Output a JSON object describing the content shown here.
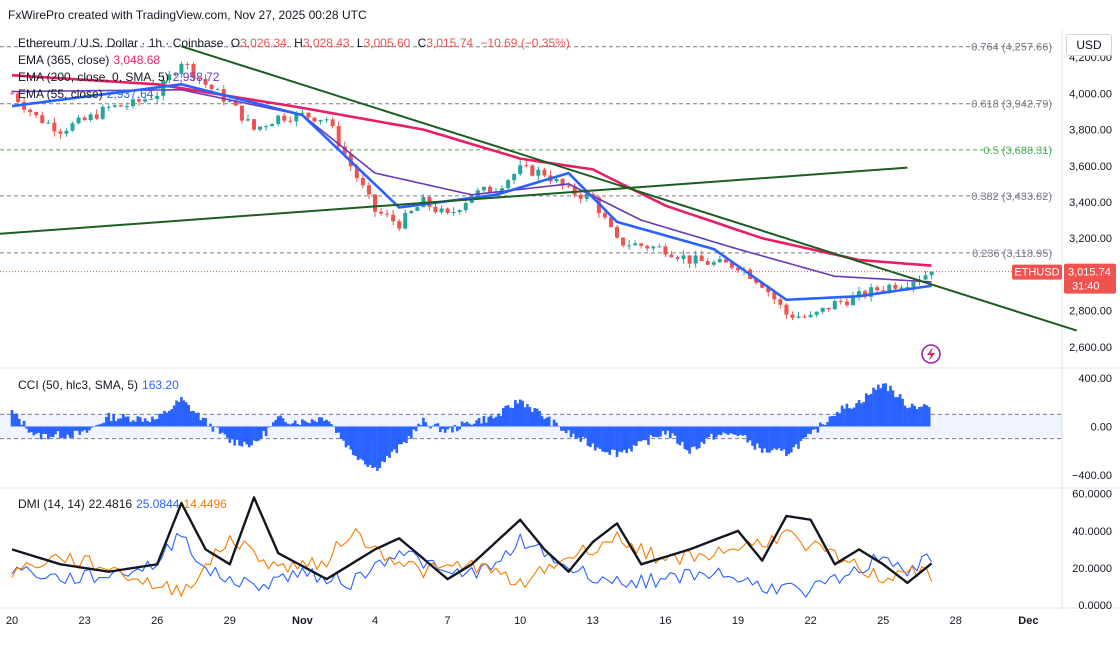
{
  "header": {
    "credit": "FxWirePro created with TradingView.com, Nov 27, 2025 00:28 UTC",
    "symbol_line": "Ethereum / U.S. Dollar · 1h · Coinbase",
    "o_label": "O",
    "o_value": "3,026.34",
    "h_label": "H",
    "h_value": "3,028.43",
    "l_label": "L",
    "l_value": "3,005.60",
    "c_label": "C",
    "c_value": "3,015.74",
    "change": "−10.69 (−0.35%)",
    "currency": "USD"
  },
  "indicators": {
    "ema365_label": "EMA (365, close)",
    "ema365_value": "3,048.68",
    "ema200_label": "EMA (200, close, 0, SMA, 5)",
    "ema200_value": "2,958.72",
    "ema55_label": "EMA (55, close)",
    "ema55_value": "2,937.64",
    "cci_label": "CCI (50, hlc3, SMA, 5)",
    "cci_value": "163.20",
    "dmi_label": "DMI (14, 14)",
    "dmi_adx": "22.4816",
    "dmi_plus": "25.0844",
    "dmi_minus": "14.4496"
  },
  "colors": {
    "up": "#26a69a",
    "down": "#ef5350",
    "ema365": "#e91e63",
    "ema200": "#673ab7",
    "ema55": "#2962ff",
    "trend": "#1b5e20",
    "fib_dash": "#787b86",
    "fib05": "#4caf50",
    "cci": "#2962ff",
    "adx": "#131722",
    "di_plus": "#2962ff",
    "di_minus": "#f57c00",
    "last_price": "#ef5350"
  },
  "chart_data": [
    {
      "type": "candlestick",
      "title": "Ethereum / U.S. Dollar · 1h · Coinbase",
      "ylim": [
        2500,
        4350
      ],
      "y_ticks": [
        "4,200.00",
        "4,000.00",
        "3,800.00",
        "3,600.00",
        "3,400.00",
        "3,200.00",
        "3,000.00",
        "2,800.00",
        "2,600.00"
      ],
      "x_ticks": [
        "20",
        "23",
        "26",
        "29",
        "Nov",
        "4",
        "7",
        "10",
        "13",
        "16",
        "19",
        "22",
        "25",
        "28",
        "Dec"
      ],
      "price_keypoints": [
        {
          "x": "Oct 20",
          "y": 4000
        },
        {
          "x": "Oct 21",
          "y": 3870
        },
        {
          "x": "Oct 22",
          "y": 3800
        },
        {
          "x": "Oct 23",
          "y": 3850
        },
        {
          "x": "Oct 24",
          "y": 3920
        },
        {
          "x": "Oct 25",
          "y": 3940
        },
        {
          "x": "Oct 26",
          "y": 4000
        },
        {
          "x": "Oct 27",
          "y": 4180
        },
        {
          "x": "Oct 28",
          "y": 4050
        },
        {
          "x": "Oct 29",
          "y": 3950
        },
        {
          "x": "Oct 30",
          "y": 3800
        },
        {
          "x": "Oct 31",
          "y": 3870
        },
        {
          "x": "Nov 1",
          "y": 3880
        },
        {
          "x": "Nov 2",
          "y": 3860
        },
        {
          "x": "Nov 3",
          "y": 3600
        },
        {
          "x": "Nov 4",
          "y": 3350
        },
        {
          "x": "Nov 5",
          "y": 3280
        },
        {
          "x": "Nov 6",
          "y": 3400
        },
        {
          "x": "Nov 7",
          "y": 3320
        },
        {
          "x": "Nov 8",
          "y": 3440
        },
        {
          "x": "Nov 9",
          "y": 3480
        },
        {
          "x": "Nov 10",
          "y": 3580
        },
        {
          "x": "Nov 11",
          "y": 3560
        },
        {
          "x": "Nov 12",
          "y": 3460
        },
        {
          "x": "Nov 13",
          "y": 3420
        },
        {
          "x": "Nov 14",
          "y": 3180
        },
        {
          "x": "Nov 15",
          "y": 3160
        },
        {
          "x": "Nov 16",
          "y": 3140
        },
        {
          "x": "Nov 17",
          "y": 3080
        },
        {
          "x": "Nov 18",
          "y": 3060
        },
        {
          "x": "Nov 19",
          "y": 3050
        },
        {
          "x": "Nov 20",
          "y": 2950
        },
        {
          "x": "Nov 21",
          "y": 2780
        },
        {
          "x": "Nov 22",
          "y": 2760
        },
        {
          "x": "Nov 23",
          "y": 2840
        },
        {
          "x": "Nov 24",
          "y": 2880
        },
        {
          "x": "Nov 25",
          "y": 2930
        },
        {
          "x": "Nov 26",
          "y": 2960
        },
        {
          "x": "Nov 27",
          "y": 3015.74
        }
      ],
      "ema365_keypoints": [
        {
          "x": "Oct 20",
          "y": 4100
        },
        {
          "x": "Oct 26",
          "y": 4050
        },
        {
          "x": "Nov 1",
          "y": 3920
        },
        {
          "x": "Nov 6",
          "y": 3800
        },
        {
          "x": "Nov 10",
          "y": 3640
        },
        {
          "x": "Nov 13",
          "y": 3580
        },
        {
          "x": "Nov 16",
          "y": 3380
        },
        {
          "x": "Nov 20",
          "y": 3200
        },
        {
          "x": "Nov 24",
          "y": 3080
        },
        {
          "x": "Nov 27",
          "y": 3048.68
        }
      ],
      "ema200_keypoints": [
        {
          "x": "Oct 20",
          "y": 4010
        },
        {
          "x": "Oct 27",
          "y": 4020
        },
        {
          "x": "Nov 1",
          "y": 3880
        },
        {
          "x": "Nov 4",
          "y": 3560
        },
        {
          "x": "Nov 8",
          "y": 3440
        },
        {
          "x": "Nov 12",
          "y": 3500
        },
        {
          "x": "Nov 15",
          "y": 3300
        },
        {
          "x": "Nov 19",
          "y": 3140
        },
        {
          "x": "Nov 23",
          "y": 2990
        },
        {
          "x": "Nov 27",
          "y": 2958.72
        }
      ],
      "ema55_keypoints": [
        {
          "x": "Oct 20",
          "y": 3930
        },
        {
          "x": "Oct 27",
          "y": 4050
        },
        {
          "x": "Nov 1",
          "y": 3880
        },
        {
          "x": "Nov 5",
          "y": 3370
        },
        {
          "x": "Nov 9",
          "y": 3440
        },
        {
          "x": "Nov 12",
          "y": 3560
        },
        {
          "x": "Nov 14",
          "y": 3290
        },
        {
          "x": "Nov 18",
          "y": 3140
        },
        {
          "x": "Nov 21",
          "y": 2860
        },
        {
          "x": "Nov 24",
          "y": 2880
        },
        {
          "x": "Nov 27",
          "y": 2937.64
        }
      ],
      "trendlines": [
        {
          "name": "descending",
          "points": [
            {
              "x": "Oct 27",
              "y": 4260
            },
            {
              "x": "Dec 3",
              "y": 2690
            }
          ]
        },
        {
          "name": "ascending",
          "points": [
            {
              "x": "Oct 19",
              "y": 3220
            },
            {
              "x": "Nov 26",
              "y": 3590
            }
          ]
        }
      ],
      "fib_levels": [
        {
          "ratio": "0.764",
          "value": 4257.66,
          "label": "0.764 (4,257.66)"
        },
        {
          "ratio": "0.618",
          "value": 3942.79,
          "label": "0.618 (3,942.79)"
        },
        {
          "ratio": "0.5",
          "value": 3688.31,
          "label": "0.5 (3,688.31)"
        },
        {
          "ratio": "0.382",
          "value": 3433.82,
          "label": "0.382 (3,433.82)"
        },
        {
          "ratio": "0.236",
          "value": 3118.95,
          "label": "0.236 (3,118.95)"
        }
      ],
      "last_price": {
        "value": 3015.74,
        "label": "3,015.74",
        "symbol": "ETHUSD",
        "countdown": "31:40"
      }
    },
    {
      "type": "bar",
      "title": "CCI (50, hlc3, SMA, 5)",
      "ylim": [
        -400,
        400
      ],
      "y_ticks": [
        "400.00",
        "0.00",
        "−400.00"
      ],
      "bands": [
        100,
        -100
      ],
      "keypoints": [
        {
          "x": "Oct 20",
          "y": 120
        },
        {
          "x": "Oct 21",
          "y": -80
        },
        {
          "x": "Oct 23",
          "y": -60
        },
        {
          "x": "Oct 24",
          "y": 80
        },
        {
          "x": "Oct 26",
          "y": 60
        },
        {
          "x": "Oct 27",
          "y": 220
        },
        {
          "x": "Oct 28",
          "y": 40
        },
        {
          "x": "Oct 29",
          "y": -120
        },
        {
          "x": "Oct 30",
          "y": -150
        },
        {
          "x": "Oct 31",
          "y": 60
        },
        {
          "x": "Nov 1",
          "y": 40
        },
        {
          "x": "Nov 2",
          "y": 80
        },
        {
          "x": "Nov 3",
          "y": -200
        },
        {
          "x": "Nov 4",
          "y": -350
        },
        {
          "x": "Nov 5",
          "y": -180
        },
        {
          "x": "Nov 6",
          "y": 40
        },
        {
          "x": "Nov 7",
          "y": -40
        },
        {
          "x": "Nov 8",
          "y": 40
        },
        {
          "x": "Nov 9",
          "y": 80
        },
        {
          "x": "Nov 10",
          "y": 220
        },
        {
          "x": "Nov 11",
          "y": 80
        },
        {
          "x": "Nov 12",
          "y": -60
        },
        {
          "x": "Nov 13",
          "y": -160
        },
        {
          "x": "Nov 14",
          "y": -220
        },
        {
          "x": "Nov 15",
          "y": -150
        },
        {
          "x": "Nov 16",
          "y": -40
        },
        {
          "x": "Nov 17",
          "y": -200
        },
        {
          "x": "Nov 18",
          "y": -80
        },
        {
          "x": "Nov 19",
          "y": -60
        },
        {
          "x": "Nov 20",
          "y": -200
        },
        {
          "x": "Nov 21",
          "y": -220
        },
        {
          "x": "Nov 22",
          "y": -80
        },
        {
          "x": "Nov 23",
          "y": 120
        },
        {
          "x": "Nov 24",
          "y": 200
        },
        {
          "x": "Nov 25",
          "y": 360
        },
        {
          "x": "Nov 26",
          "y": 180
        },
        {
          "x": "Nov 27",
          "y": 163.2
        }
      ]
    },
    {
      "type": "line",
      "title": "DMI (14, 14)",
      "ylim": [
        0,
        60
      ],
      "y_ticks": [
        "60.0000",
        "40.0000",
        "20.0000",
        "0.0000"
      ],
      "series": [
        {
          "name": "ADX",
          "values": [
            {
              "x": "Oct 20",
              "y": 30
            },
            {
              "x": "Oct 22",
              "y": 22
            },
            {
              "x": "Oct 24",
              "y": 18
            },
            {
              "x": "Oct 26",
              "y": 22
            },
            {
              "x": "Oct 27",
              "y": 55
            },
            {
              "x": "Oct 28",
              "y": 30
            },
            {
              "x": "Oct 29",
              "y": 22
            },
            {
              "x": "Oct 30",
              "y": 58
            },
            {
              "x": "Oct 31",
              "y": 28
            },
            {
              "x": "Nov 2",
              "y": 14
            },
            {
              "x": "Nov 4",
              "y": 30
            },
            {
              "x": "Nov 5",
              "y": 36
            },
            {
              "x": "Nov 7",
              "y": 14
            },
            {
              "x": "Nov 8",
              "y": 22
            },
            {
              "x": "Nov 10",
              "y": 46
            },
            {
              "x": "Nov 11",
              "y": 30
            },
            {
              "x": "Nov 12",
              "y": 18
            },
            {
              "x": "Nov 13",
              "y": 34
            },
            {
              "x": "Nov 14",
              "y": 44
            },
            {
              "x": "Nov 15",
              "y": 22
            },
            {
              "x": "Nov 17",
              "y": 30
            },
            {
              "x": "Nov 19",
              "y": 40
            },
            {
              "x": "Nov 20",
              "y": 24
            },
            {
              "x": "Nov 21",
              "y": 48
            },
            {
              "x": "Nov 22",
              "y": 46
            },
            {
              "x": "Nov 23",
              "y": 22
            },
            {
              "x": "Nov 24",
              "y": 30
            },
            {
              "x": "Nov 25",
              "y": 22
            },
            {
              "x": "Nov 26",
              "y": 12
            },
            {
              "x": "Nov 27",
              "y": 22.4816
            }
          ]
        },
        {
          "name": "+DI",
          "values": [
            {
              "x": "Oct 20",
              "y": 20
            },
            {
              "x": "Oct 22",
              "y": 14
            },
            {
              "x": "Oct 24",
              "y": 16
            },
            {
              "x": "Oct 26",
              "y": 22
            },
            {
              "x": "Oct 27",
              "y": 40
            },
            {
              "x": "Oct 28",
              "y": 18
            },
            {
              "x": "Oct 30",
              "y": 10
            },
            {
              "x": "Nov 1",
              "y": 18
            },
            {
              "x": "Nov 3",
              "y": 12
            },
            {
              "x": "Nov 5",
              "y": 30
            },
            {
              "x": "Nov 7",
              "y": 16
            },
            {
              "x": "Nov 9",
              "y": 20
            },
            {
              "x": "Nov 10",
              "y": 36
            },
            {
              "x": "Nov 12",
              "y": 20
            },
            {
              "x": "Nov 14",
              "y": 12
            },
            {
              "x": "Nov 16",
              "y": 14
            },
            {
              "x": "Nov 18",
              "y": 18
            },
            {
              "x": "Nov 20",
              "y": 10
            },
            {
              "x": "Nov 22",
              "y": 8
            },
            {
              "x": "Nov 24",
              "y": 18
            },
            {
              "x": "Nov 25",
              "y": 28
            },
            {
              "x": "Nov 26",
              "y": 18
            },
            {
              "x": "Nov 27",
              "y": 25.0844
            }
          ]
        },
        {
          "name": "−DI",
          "values": [
            {
              "x": "Oct 20",
              "y": 18
            },
            {
              "x": "Oct 22",
              "y": 26
            },
            {
              "x": "Oct 24",
              "y": 20
            },
            {
              "x": "Oct 26",
              "y": 10
            },
            {
              "x": "Oct 27",
              "y": 8
            },
            {
              "x": "Oct 28",
              "y": 20
            },
            {
              "x": "Oct 29",
              "y": 36
            },
            {
              "x": "Oct 31",
              "y": 20
            },
            {
              "x": "Nov 2",
              "y": 24
            },
            {
              "x": "Nov 3",
              "y": 40
            },
            {
              "x": "Nov 4",
              "y": 30
            },
            {
              "x": "Nov 6",
              "y": 18
            },
            {
              "x": "Nov 8",
              "y": 22
            },
            {
              "x": "Nov 10",
              "y": 12
            },
            {
              "x": "Nov 12",
              "y": 26
            },
            {
              "x": "Nov 14",
              "y": 36
            },
            {
              "x": "Nov 16",
              "y": 24
            },
            {
              "x": "Nov 18",
              "y": 28
            },
            {
              "x": "Nov 20",
              "y": 34
            },
            {
              "x": "Nov 21",
              "y": 38
            },
            {
              "x": "Nov 23",
              "y": 26
            },
            {
              "x": "Nov 25",
              "y": 14
            },
            {
              "x": "Nov 26",
              "y": 20
            },
            {
              "x": "Nov 27",
              "y": 14.4496
            }
          ]
        }
      ]
    }
  ]
}
